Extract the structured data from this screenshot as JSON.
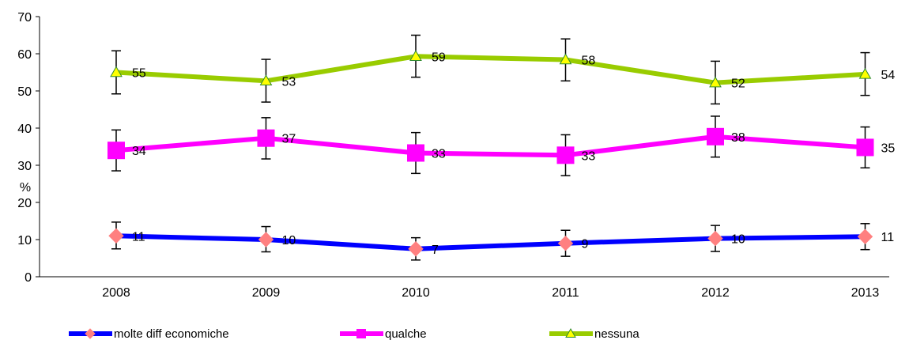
{
  "chart_data": {
    "type": "line",
    "title": "",
    "xlabel": "",
    "ylabel": "%",
    "categories": [
      "2008",
      "2009",
      "2010",
      "2011",
      "2012",
      "2013"
    ],
    "ylim": [
      0,
      70
    ],
    "yticks": [
      0,
      10,
      20,
      30,
      40,
      50,
      60,
      70
    ],
    "grid": false,
    "legend_position": "bottom-left",
    "series": [
      {
        "name": "molte diff economiche",
        "values": [
          11,
          10,
          7.5,
          9,
          10.3,
          10.8
        ],
        "labels": [
          "11",
          "10",
          "7",
          "9",
          "10",
          "11"
        ],
        "error_low": [
          7.5,
          6.7,
          4.5,
          5.5,
          6.8,
          7.3
        ],
        "error_high": [
          14.7,
          13.5,
          10.5,
          12.5,
          13.8,
          14.3
        ],
        "line_color": "#0000FF",
        "marker": "diamond",
        "marker_color": "#FF8080"
      },
      {
        "name": "qualche",
        "values": [
          34,
          37.3,
          33.3,
          32.7,
          37.7,
          34.8
        ],
        "labels": [
          "34",
          "37",
          "33",
          "33",
          "38",
          "35"
        ],
        "error_low": [
          28.5,
          31.7,
          27.8,
          27.2,
          32.2,
          29.3
        ],
        "error_high": [
          39.5,
          42.8,
          38.8,
          38.2,
          43.2,
          40.3
        ],
        "line_color": "#FF00FF",
        "marker": "square",
        "marker_color": "#FF00FF"
      },
      {
        "name": "nessuna",
        "values": [
          55,
          52.7,
          59.3,
          58.4,
          52.2,
          54.5
        ],
        "labels": [
          "55",
          "53",
          "59",
          "58",
          "52",
          "54"
        ],
        "error_low": [
          49.2,
          47,
          53.7,
          52.7,
          46.5,
          48.8
        ],
        "error_high": [
          60.8,
          58.5,
          65,
          64,
          58,
          60.3
        ],
        "line_color": "#99CC00",
        "marker": "triangle",
        "marker_color": "#FFFF00"
      }
    ]
  }
}
